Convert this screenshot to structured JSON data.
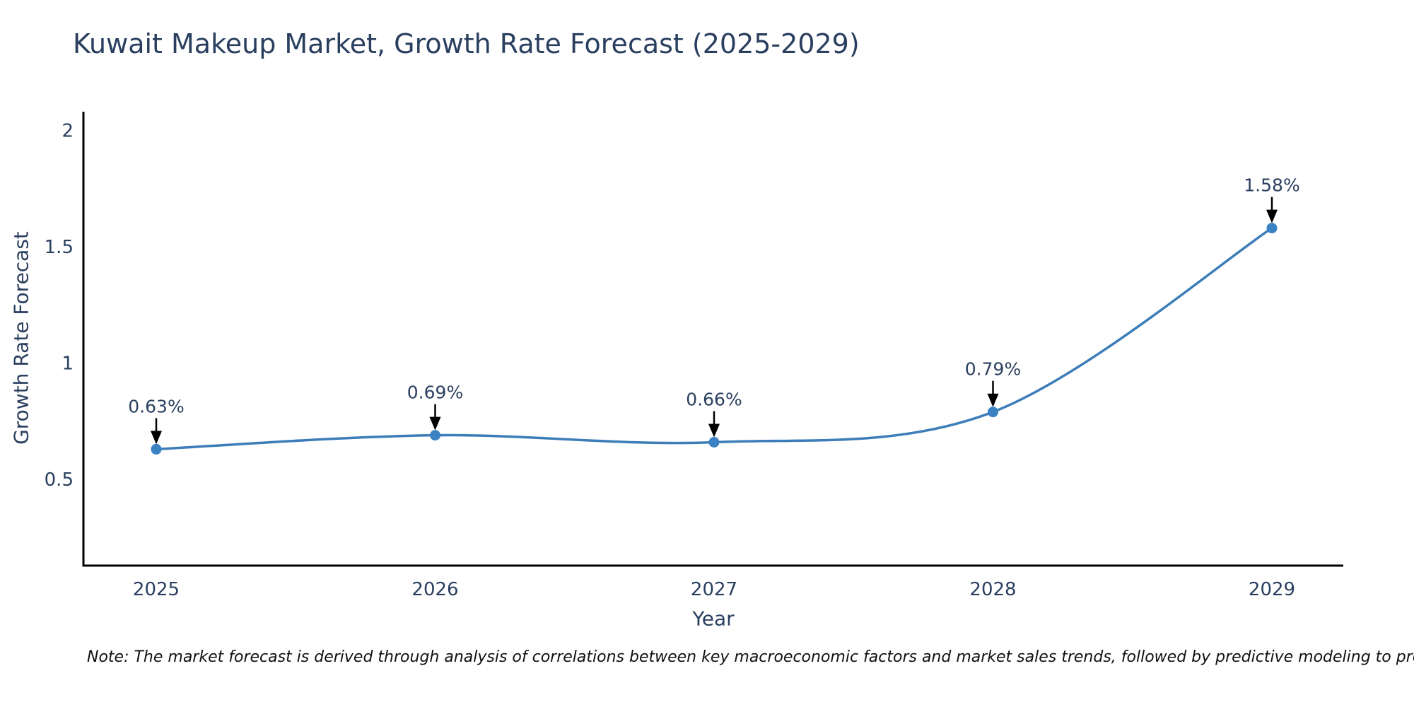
{
  "chart": {
    "title": "Kuwait Makeup Market, Growth Rate Forecast (2025-2029)",
    "xlabel": "Year",
    "ylabel": "Growth Rate Forecast",
    "note": "Note: The market forecast is derived through analysis of correlations between key macroeconomic factors and market sales trends, followed by predictive modeling to project future sales"
  },
  "chart_data": {
    "type": "line",
    "title": "Kuwait Makeup Market, Growth Rate Forecast (2025-2029)",
    "xlabel": "Year",
    "ylabel": "Growth Rate Forecast",
    "categories": [
      "2025",
      "2026",
      "2027",
      "2028",
      "2029"
    ],
    "x": [
      2025,
      2026,
      2027,
      2028,
      2029
    ],
    "values": [
      0.63,
      0.69,
      0.66,
      0.79,
      1.58
    ],
    "point_labels": [
      "0.63%",
      "0.69%",
      "0.66%",
      "0.79%",
      "1.58%"
    ],
    "yticks": [
      0.5,
      1,
      1.5,
      2
    ],
    "ytick_labels": [
      "0.5",
      "1",
      "1.5",
      "2"
    ],
    "ylim": [
      0.13,
      2.08
    ],
    "grid": false,
    "legend": "none",
    "curve": "spline",
    "line_color": "#3d7db9",
    "marker_color": "#3b82c4",
    "axis_color": "#000000",
    "text_color": "#2a3f5f",
    "annotation_arrow_color": "#000000"
  }
}
